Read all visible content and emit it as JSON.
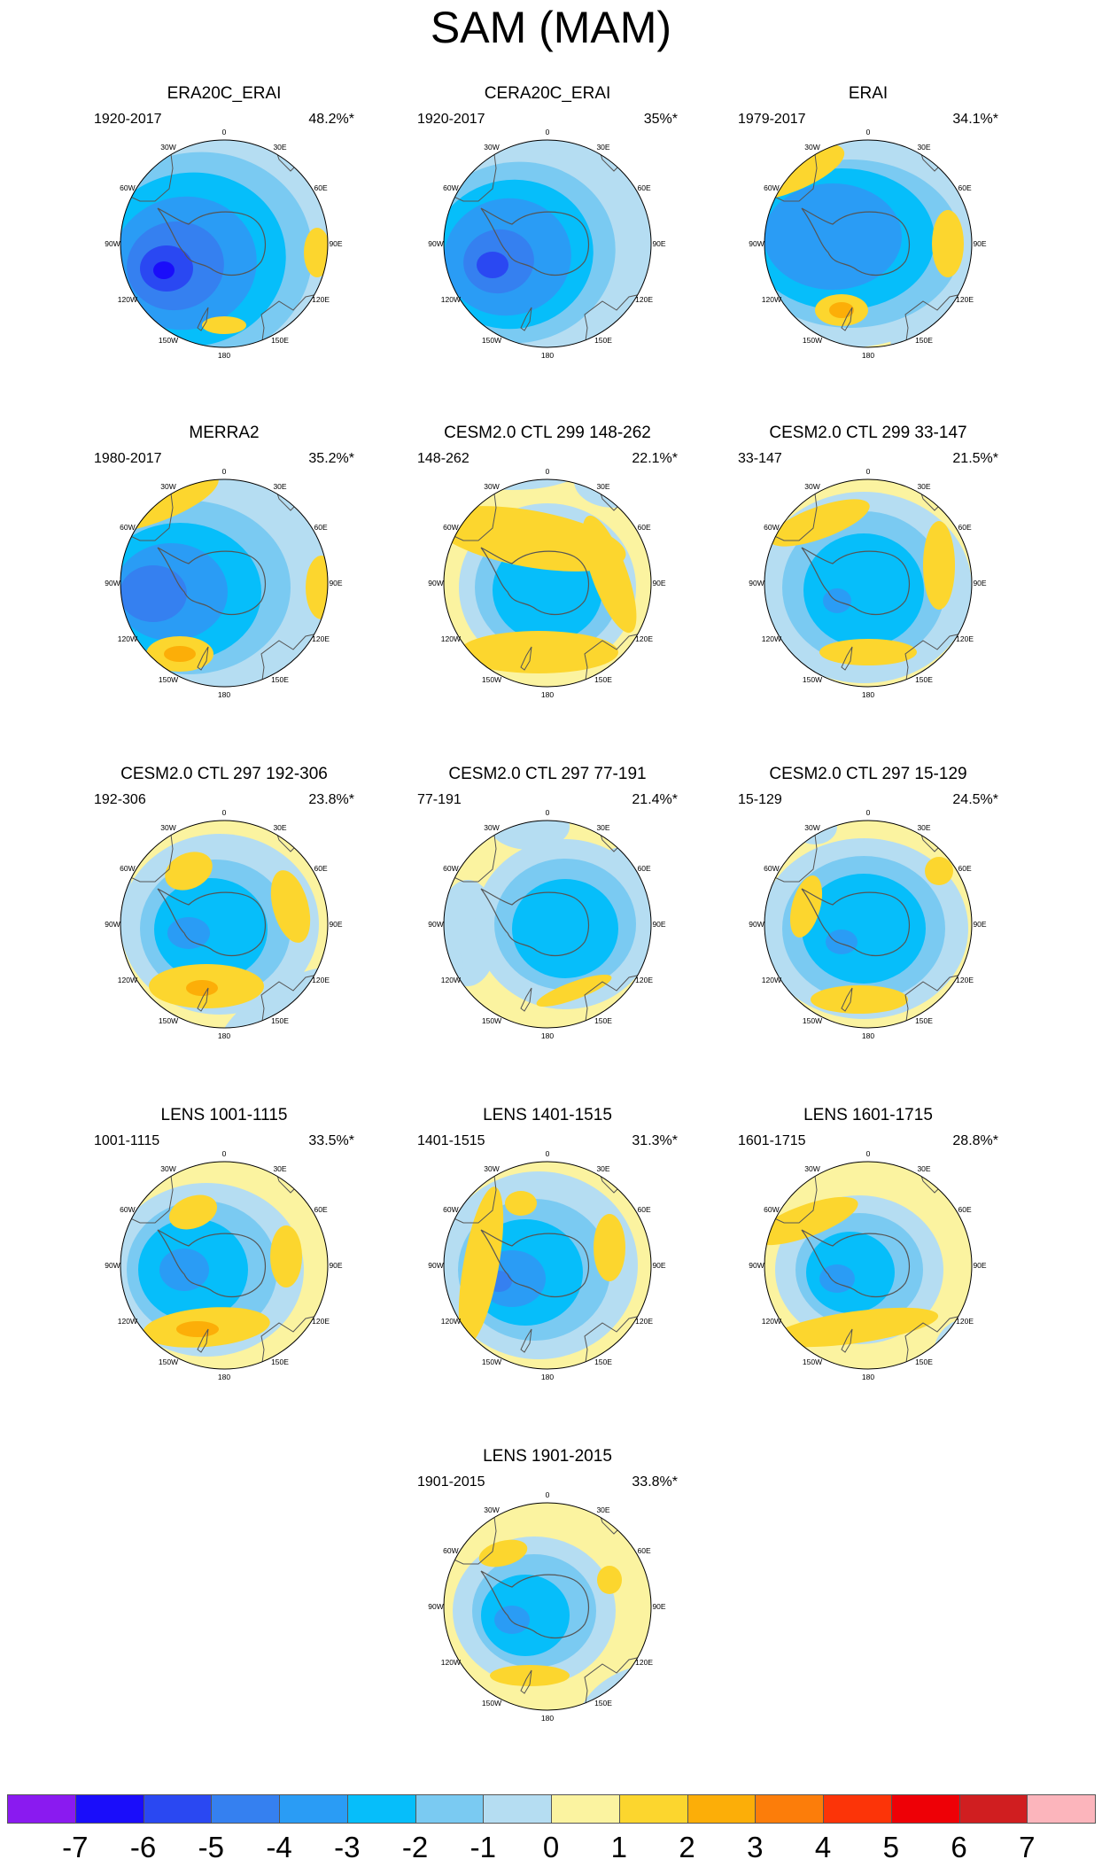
{
  "title": "SAM (MAM)",
  "longitude_labels": [
    "0",
    "30E",
    "60E",
    "90E",
    "120E",
    "150E",
    "180",
    "150W",
    "120W",
    "90W",
    "60W",
    "30W"
  ],
  "panels": [
    {
      "title": "ERA20C_ERAI",
      "years": "1920-2017",
      "percent": "48.2%*"
    },
    {
      "title": "CERA20C_ERAI",
      "years": "1920-2017",
      "percent": "35%*"
    },
    {
      "title": "ERAI",
      "years": "1979-2017",
      "percent": "34.1%*"
    },
    {
      "title": "MERRA2",
      "years": "1980-2017",
      "percent": "35.2%*"
    },
    {
      "title": "CESM2.0 CTL 299 148-262",
      "years": "148-262",
      "percent": "22.1%*"
    },
    {
      "title": "CESM2.0 CTL 299 33-147",
      "years": "33-147",
      "percent": "21.5%*"
    },
    {
      "title": "CESM2.0 CTL 297 192-306",
      "years": "192-306",
      "percent": "23.8%*"
    },
    {
      "title": "CESM2.0 CTL 297 77-191",
      "years": "77-191",
      "percent": "21.4%*"
    },
    {
      "title": "CESM2.0 CTL 297 15-129",
      "years": "15-129",
      "percent": "24.5%*"
    },
    {
      "title": "LENS 1001-1115",
      "years": "1001-1115",
      "percent": "33.5%*"
    },
    {
      "title": "LENS 1401-1515",
      "years": "1401-1515",
      "percent": "31.3%*"
    },
    {
      "title": "LENS 1601-1715",
      "years": "1601-1715",
      "percent": "28.8%*"
    },
    {
      "title": "LENS 1901-2015",
      "years": "1901-2015",
      "percent": "33.8%*"
    }
  ],
  "colorbar": {
    "labels": [
      "-7",
      "-6",
      "-5",
      "-4",
      "-3",
      "-2",
      "-1",
      "0",
      "1",
      "2",
      "3",
      "4",
      "5",
      "6",
      "7"
    ],
    "colors": [
      "#8A1AF0",
      "#1A0DFA",
      "#2A48F2",
      "#3580F0",
      "#2A9CF5",
      "#06BEFA",
      "#7ACAF2",
      "#B5DDF2",
      "#FBF3A0",
      "#FCD62E",
      "#FCAE08",
      "#FC7D0A",
      "#FC3408",
      "#EE0006",
      "#D01E20",
      "#FCB5BC"
    ]
  },
  "colors": {
    "ocean_positive_weak": "#FBF3A0",
    "ocean_negative_weak": "#B5DDF2",
    "coastline": "#555555"
  }
}
